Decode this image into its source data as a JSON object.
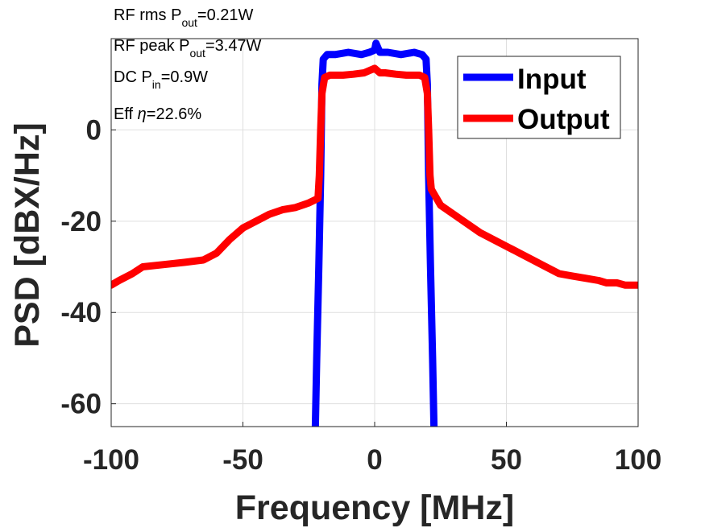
{
  "chart_data": {
    "type": "line",
    "xlabel": "Frequency [MHz]",
    "ylabel": "PSD [dBX/Hz]",
    "xlim": [
      -100,
      100
    ],
    "ylim": [
      -65,
      20
    ],
    "xticks": [
      -100,
      -50,
      0,
      50,
      100
    ],
    "yticks": [
      0,
      -20,
      -40,
      -60
    ],
    "xtick_labels": [
      "-100",
      "-50",
      "0",
      "50",
      "100"
    ],
    "ytick_labels": [
      "0",
      "-20",
      "-40",
      "-60"
    ],
    "grid": true,
    "legend_position": "top-right",
    "colors": {
      "Input": "#0000ff",
      "Output": "#ff0000"
    },
    "series": [
      {
        "name": "Input",
        "x": [
          -22.5,
          -22,
          -21.2,
          -20.5,
          -20,
          -19.5,
          -18,
          -15,
          -10,
          -5,
          -2,
          0,
          0.5,
          2,
          5,
          10,
          15,
          18,
          19.5,
          20,
          20.5,
          21.2,
          22,
          22.5
        ],
        "y": [
          -65,
          -50,
          -30,
          -10,
          10,
          15.5,
          16.5,
          16.5,
          17,
          16.5,
          17,
          17.5,
          19,
          17,
          17,
          16.5,
          17,
          16.5,
          15.5,
          10,
          -10,
          -30,
          -50,
          -65
        ]
      },
      {
        "name": "Output",
        "x": [
          -100,
          -97,
          -92,
          -88,
          -80,
          -72,
          -65,
          -60,
          -55,
          -50,
          -45,
          -40,
          -35,
          -30,
          -25,
          -21.5,
          -21,
          -20.5,
          -20,
          -19,
          -17,
          -12,
          -8,
          -4,
          0,
          2,
          4,
          8,
          12,
          17,
          19,
          20,
          -20.001,
          20.5,
          21,
          21.5,
          25,
          30,
          35,
          40,
          45,
          50,
          55,
          60,
          65,
          70,
          75,
          80,
          85,
          88,
          92,
          95,
          100
        ],
        "y": [
          -34,
          -33,
          -31.5,
          -30,
          -29.5,
          -29,
          -28.5,
          -27,
          -24,
          -21.5,
          -20,
          -18.5,
          -17.5,
          -17,
          -16,
          -15,
          -10,
          0,
          8,
          11.5,
          12,
          12,
          12.2,
          12.5,
          13.5,
          12.5,
          12.5,
          12.2,
          12,
          12,
          11.5,
          8,
          0,
          0,
          -10,
          -13,
          -16.5,
          -18.5,
          -20.5,
          -22.5,
          -24,
          -25.5,
          -27,
          -28.5,
          -30,
          -31.5,
          -32,
          -32.5,
          -33,
          -33.5,
          -33.5,
          -34,
          -34
        ]
      }
    ],
    "annotations": [
      {
        "text": "RF rms P",
        "sub": "out",
        "rest": "=0.21W"
      },
      {
        "text": "RF peak P",
        "sub": "out",
        "rest": "=3.47W"
      },
      {
        "text": "DC P",
        "sub": "in",
        "rest": "=0.9W"
      },
      {
        "text": "Eff ",
        "italic": "η",
        "rest": "=22.6%"
      }
    ]
  }
}
